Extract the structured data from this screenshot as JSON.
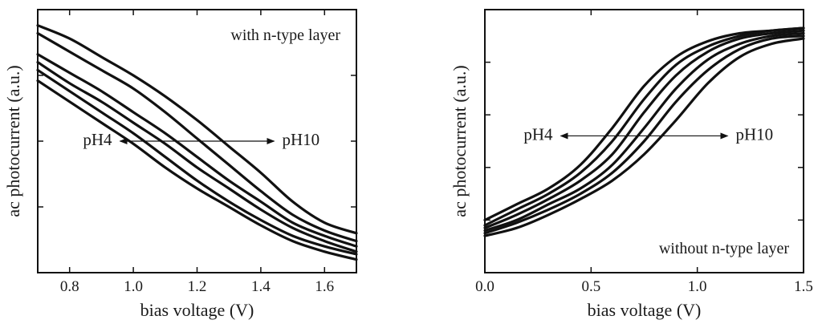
{
  "chart_data": [
    {
      "type": "line",
      "title": "",
      "annotation": "with n-type layer",
      "xlabel": "bias voltage (V)",
      "ylabel": "ac photocurrent (a.u.)",
      "xlim": [
        0.7,
        1.7
      ],
      "ylim": [
        0,
        1
      ],
      "xticks": [
        0.8,
        1.0,
        1.2,
        1.4,
        1.6
      ],
      "xtick_labels": [
        "0.8",
        "1.0",
        "1.2",
        "1.4",
        "1.6"
      ],
      "y_ticks_unlabeled": [
        0.25,
        0.5,
        0.75
      ],
      "arrow": {
        "left_label": "pH4",
        "right_label": "pH10",
        "y": 0.5
      },
      "x": [
        0.7,
        0.8,
        0.9,
        1.0,
        1.1,
        1.2,
        1.3,
        1.4,
        1.5,
        1.6,
        1.7
      ],
      "series": [
        {
          "values": [
            0.73,
            0.65,
            0.57,
            0.49,
            0.4,
            0.32,
            0.25,
            0.18,
            0.12,
            0.08,
            0.05
          ]
        },
        {
          "values": [
            0.77,
            0.69,
            0.61,
            0.53,
            0.44,
            0.35,
            0.27,
            0.2,
            0.14,
            0.1,
            0.07
          ]
        },
        {
          "values": [
            0.8,
            0.72,
            0.65,
            0.57,
            0.49,
            0.4,
            0.32,
            0.24,
            0.17,
            0.12,
            0.08
          ]
        },
        {
          "values": [
            0.83,
            0.76,
            0.69,
            0.61,
            0.53,
            0.44,
            0.35,
            0.27,
            0.19,
            0.14,
            0.1
          ]
        },
        {
          "values": [
            0.91,
            0.84,
            0.77,
            0.7,
            0.61,
            0.51,
            0.41,
            0.31,
            0.22,
            0.16,
            0.12
          ]
        },
        {
          "values": [
            0.94,
            0.89,
            0.82,
            0.75,
            0.67,
            0.58,
            0.48,
            0.38,
            0.27,
            0.19,
            0.15
          ]
        }
      ]
    },
    {
      "type": "line",
      "title": "",
      "annotation": "without n-type layer",
      "xlabel": "bias voltage (V)",
      "ylabel": "ac photocurrent (a.u.)",
      "xlim": [
        0.0,
        1.5
      ],
      "ylim": [
        0,
        1
      ],
      "xticks": [
        0.0,
        0.5,
        1.0,
        1.5
      ],
      "xtick_labels": [
        "0.0",
        "0.5",
        "1.0",
        "1.5"
      ],
      "y_ticks_unlabeled": [
        0.2,
        0.4,
        0.6,
        0.8
      ],
      "arrow": {
        "left_label": "pH4",
        "right_label": "pH10",
        "y": 0.52
      },
      "x": [
        0.0,
        0.15,
        0.3,
        0.45,
        0.6,
        0.75,
        0.9,
        1.05,
        1.2,
        1.35,
        1.5
      ],
      "series": [
        {
          "values": [
            0.2,
            0.26,
            0.32,
            0.41,
            0.55,
            0.71,
            0.82,
            0.88,
            0.91,
            0.92,
            0.93
          ]
        },
        {
          "values": [
            0.18,
            0.24,
            0.3,
            0.38,
            0.5,
            0.66,
            0.79,
            0.86,
            0.9,
            0.92,
            0.93
          ]
        },
        {
          "values": [
            0.17,
            0.22,
            0.28,
            0.35,
            0.45,
            0.61,
            0.75,
            0.84,
            0.89,
            0.91,
            0.92
          ]
        },
        {
          "values": [
            0.16,
            0.2,
            0.26,
            0.32,
            0.41,
            0.55,
            0.7,
            0.81,
            0.87,
            0.9,
            0.91
          ]
        },
        {
          "values": [
            0.15,
            0.19,
            0.24,
            0.3,
            0.38,
            0.5,
            0.65,
            0.77,
            0.85,
            0.89,
            0.9
          ]
        },
        {
          "values": [
            0.14,
            0.17,
            0.22,
            0.28,
            0.35,
            0.45,
            0.58,
            0.72,
            0.82,
            0.87,
            0.89
          ]
        }
      ]
    }
  ]
}
